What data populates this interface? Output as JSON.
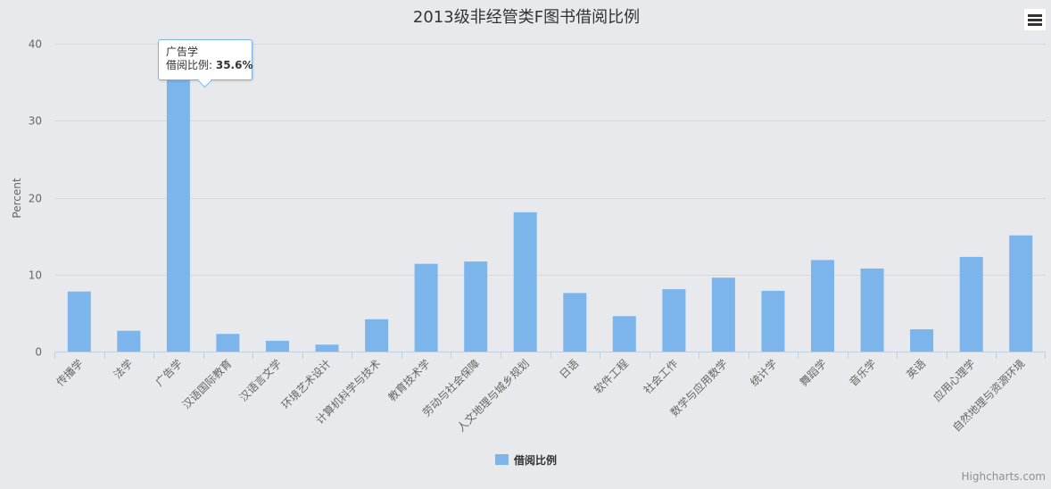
{
  "chart_data": {
    "type": "bar",
    "title": "2013级非经管类F图书借阅比例",
    "ylabel": "Percent",
    "xlabel": "",
    "ylim": [
      0,
      40
    ],
    "yticks": [
      0,
      10,
      20,
      30,
      40
    ],
    "grid": true,
    "legend_position": "bottom-center",
    "categories": [
      "传播学",
      "法学",
      "广告学",
      "汉语国际教育",
      "汉语言文学",
      "环境艺术设计",
      "计算机科学与技术",
      "教育技术学",
      "劳动与社会保障",
      "人文地理与城乡规划",
      "日语",
      "软件工程",
      "社会工作",
      "数学与应用数学",
      "统计学",
      "舞蹈学",
      "音乐学",
      "英语",
      "应用心理学",
      "自然地理与资源环境"
    ],
    "series": [
      {
        "name": "借阅比例",
        "color": "#7cb5ec",
        "values": [
          7.8,
          2.7,
          35.6,
          2.3,
          1.4,
          0.9,
          4.2,
          11.4,
          11.7,
          18.1,
          7.6,
          4.6,
          8.1,
          9.6,
          7.9,
          11.9,
          10.8,
          2.9,
          12.3,
          15.1
        ]
      }
    ],
    "tooltip": {
      "category": "广告学",
      "series_label": "借阅比例: ",
      "value_label": "35.6%"
    }
  },
  "credits": "Highcharts.com",
  "menu_icon": "hamburger-menu-icon"
}
